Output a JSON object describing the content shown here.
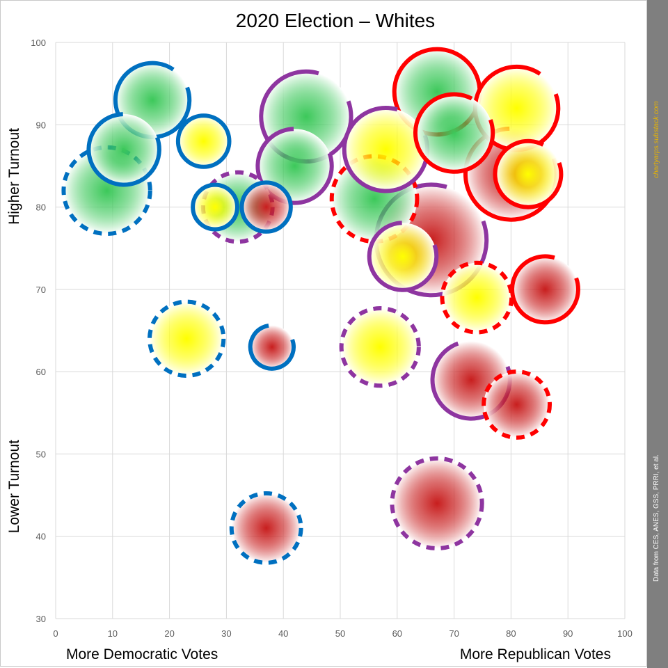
{
  "chart_data": {
    "type": "scatter",
    "title": "2020 Election – Whites",
    "x_axis": {
      "min": 0,
      "max": 100,
      "ticks": [
        0,
        10,
        20,
        30,
        40,
        50,
        60,
        70,
        80,
        90,
        100
      ]
    },
    "y_axis": {
      "min": 30,
      "max": 100,
      "ticks": [
        30,
        40,
        50,
        60,
        70,
        80,
        90,
        100
      ]
    },
    "x_label_left": "More Democratic Votes",
    "x_label_right": "More Republican Votes",
    "y_label_top": "Higher Turnout",
    "y_label_bottom": "Lower Turnout",
    "grid": true,
    "colors": {
      "democratic": "#0070c0",
      "mixed": "#8e35a0",
      "republican": "#ff0000",
      "fill_green": "#3cc85a",
      "fill_yellow": "#ffff00",
      "fill_red": "#c81e1e"
    },
    "points": [
      {
        "x": 67,
        "y": 94,
        "r": 7.5,
        "fill": "green",
        "ring": "republican",
        "style": "solid",
        "gap": 0
      },
      {
        "x": 81,
        "y": 92,
        "r": 7.3,
        "fill": "yellow",
        "ring": "republican",
        "style": "solid",
        "gap": 0.1
      },
      {
        "x": 80,
        "y": 84,
        "r": 8.0,
        "fill": "red",
        "ring": "republican",
        "style": "solid",
        "gap": 0.2
      },
      {
        "x": 66,
        "y": 76,
        "r": 9.7,
        "fill": "red",
        "ring": "mixed",
        "style": "solid",
        "gap": 0.15
      },
      {
        "x": 17,
        "y": 93,
        "r": 6.5,
        "fill": "green",
        "ring": "democratic",
        "style": "solid",
        "gap": 0.1
      },
      {
        "x": 44,
        "y": 91,
        "r": 7.9,
        "fill": "green",
        "ring": "mixed",
        "style": "solid",
        "gap": 0.15
      },
      {
        "x": 12,
        "y": 87,
        "r": 6.2,
        "fill": "green",
        "ring": "democratic",
        "style": "solid",
        "gap": 0.2
      },
      {
        "x": 26,
        "y": 88,
        "r": 4.5,
        "fill": "yellow",
        "ring": "democratic",
        "style": "solid",
        "gap": 0
      },
      {
        "x": 58,
        "y": 87,
        "r": 7.3,
        "fill": "yellow",
        "ring": "mixed",
        "style": "solid",
        "gap": 0.15
      },
      {
        "x": 70,
        "y": 89,
        "r": 6.8,
        "fill": "green",
        "ring": "republican",
        "style": "solid",
        "gap": 0.12
      },
      {
        "x": 42,
        "y": 85,
        "r": 6.5,
        "fill": "green",
        "ring": "mixed",
        "style": "solid",
        "gap": 0.2
      },
      {
        "x": 83,
        "y": 84,
        "r": 5.8,
        "fill": "yellow",
        "ring": "republican",
        "style": "solid",
        "gap": 0.12
      },
      {
        "x": 9,
        "y": 82,
        "r": 7.6,
        "fill": "green",
        "ring": "democratic",
        "style": "dashed",
        "gap": 0
      },
      {
        "x": 32,
        "y": 80,
        "r": 6.1,
        "fill": "green",
        "ring": "mixed",
        "style": "dashed",
        "gap": 0
      },
      {
        "x": 56,
        "y": 81,
        "r": 7.5,
        "fill": "green",
        "ring": "republican",
        "style": "dashed",
        "gap": 0
      },
      {
        "x": 28,
        "y": 80,
        "r": 3.9,
        "fill": "yellow",
        "ring": "democratic",
        "style": "solid",
        "gap": 0
      },
      {
        "x": 37,
        "y": 80,
        "r": 4.3,
        "fill": "red",
        "ring": "democratic",
        "style": "solid",
        "gap": 0
      },
      {
        "x": 61,
        "y": 74,
        "r": 5.9,
        "fill": "yellow",
        "ring": "mixed",
        "style": "solid",
        "gap": 0.2
      },
      {
        "x": 74,
        "y": 69,
        "r": 6.1,
        "fill": "yellow",
        "ring": "republican",
        "style": "dashed",
        "gap": 0
      },
      {
        "x": 86,
        "y": 70,
        "r": 5.8,
        "fill": "red",
        "ring": "republican",
        "style": "solid",
        "gap": 0.15
      },
      {
        "x": 23,
        "y": 64,
        "r": 6.5,
        "fill": "yellow",
        "ring": "democratic",
        "style": "dashed",
        "gap": 0
      },
      {
        "x": 38,
        "y": 63,
        "r": 3.8,
        "fill": "red",
        "ring": "democratic",
        "style": "solid",
        "gap": 0.22
      },
      {
        "x": 57,
        "y": 63,
        "r": 6.8,
        "fill": "yellow",
        "ring": "mixed",
        "style": "dashed",
        "gap": 0
      },
      {
        "x": 73,
        "y": 59,
        "r": 6.8,
        "fill": "red",
        "ring": "mixed",
        "style": "solid",
        "gap": 0.25
      },
      {
        "x": 81,
        "y": 56,
        "r": 5.8,
        "fill": "red",
        "ring": "republican",
        "style": "dashed",
        "gap": 0
      },
      {
        "x": 67,
        "y": 44,
        "r": 7.9,
        "fill": "red",
        "ring": "mixed",
        "style": "dashed",
        "gap": 0
      },
      {
        "x": 37,
        "y": 41,
        "r": 6.1,
        "fill": "red",
        "ring": "democratic",
        "style": "dashed",
        "gap": 0
      }
    ]
  },
  "sidebar": {
    "url_text": "chartyarps.substack.com",
    "source_text": "Data from CES, ANES, GSS, PRRI, et al."
  }
}
